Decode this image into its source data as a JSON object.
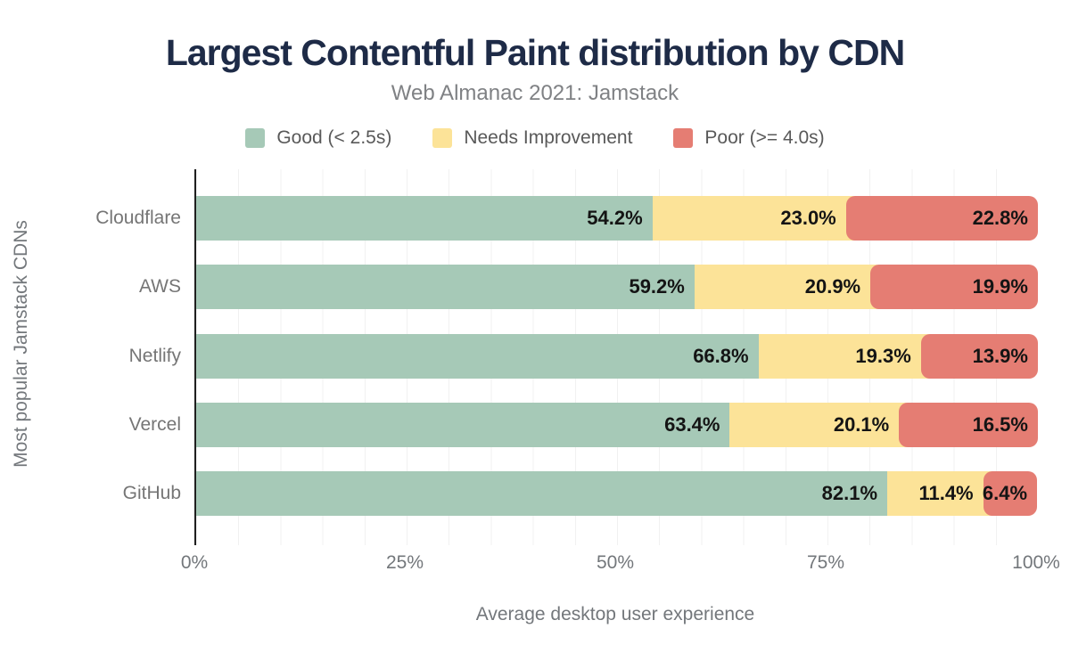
{
  "title": "Largest Contentful Paint distribution by CDN",
  "subtitle": "Web Almanac 2021: Jamstack",
  "legend": {
    "items": [
      {
        "label": "Good (< 2.5s)",
        "color": "#a6c9b7"
      },
      {
        "label": "Needs Improvement",
        "color": "#fce398"
      },
      {
        "label": "Poor (>= 4.0s)",
        "color": "#e57d73"
      }
    ]
  },
  "colors": {
    "good": "#a6c9b7",
    "needs_improvement": "#fce398",
    "poor": "#e57d73",
    "title_navy": "#1e2b47",
    "axis_line": "#1f1f1f",
    "gridline": "#f1f1f1",
    "bar_label_text": "#141414",
    "muted_text": "#73777b"
  },
  "chart_data": {
    "type": "bar",
    "orientation": "horizontal",
    "stacked": true,
    "title": "Largest Contentful Paint distribution by CDN",
    "subtitle": "Web Almanac 2021: Jamstack",
    "categories": [
      "Cloudflare",
      "AWS",
      "Netlify",
      "Vercel",
      "GitHub"
    ],
    "series": [
      {
        "name": "Good (< 2.5s)",
        "color": "#a6c9b7",
        "values": [
          54.2,
          59.2,
          66.8,
          63.4,
          82.1
        ]
      },
      {
        "name": "Needs Improvement",
        "color": "#fce398",
        "values": [
          23.0,
          20.9,
          19.3,
          20.1,
          11.4
        ]
      },
      {
        "name": "Poor (>= 4.0s)",
        "color": "#e57d73",
        "values": [
          22.8,
          19.9,
          13.9,
          16.5,
          6.4
        ]
      }
    ],
    "value_suffix": "%",
    "value_decimals": 1,
    "xlabel": "Average desktop user experience",
    "ylabel": "Most popular Jamstack CDNs",
    "x_ticks": [
      "0%",
      "25%",
      "50%",
      "75%",
      "100%"
    ],
    "x_tick_positions": [
      0,
      25,
      50,
      75,
      100
    ],
    "xlim": [
      0,
      100
    ],
    "grid": "vertical minor gridlines every 5%",
    "legend_position": "top-center"
  }
}
